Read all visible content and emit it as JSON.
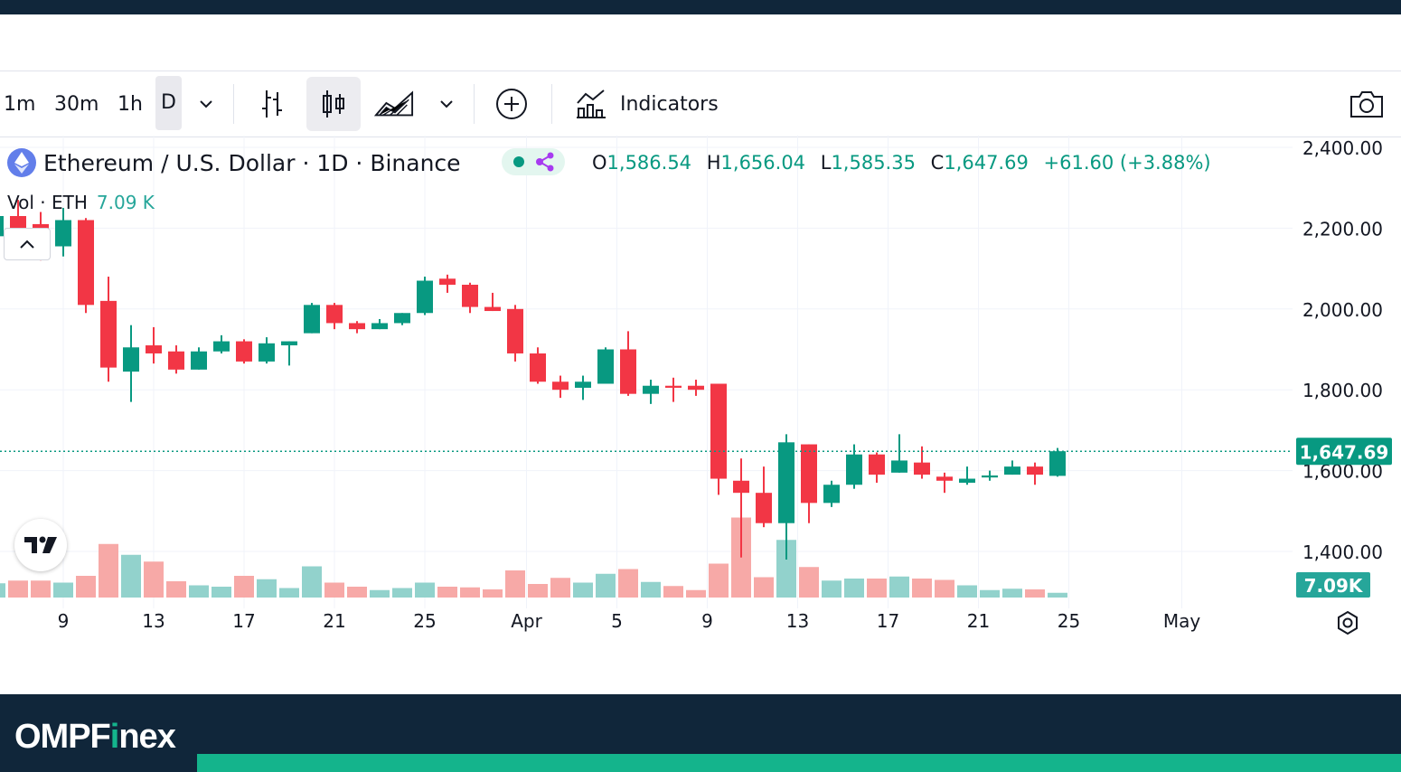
{
  "toolbar": {
    "timeframes": [
      "1m",
      "30m",
      "1h",
      "D"
    ],
    "active_timeframe": "D",
    "indicators_label": "Indicators"
  },
  "legend": {
    "symbol": "Ethereum / U.S. Dollar · 1D · Binance",
    "open_key": "O",
    "open": "1,586.54",
    "high_key": "H",
    "high": "1,656.04",
    "low_key": "L",
    "low": "1,585.35",
    "close_key": "C",
    "close": "1,647.69",
    "change": "+61.60 (+3.88%)",
    "vol_label": "Vol · ETH",
    "vol_value": "7.09 K"
  },
  "brand": {
    "name_part1": "OMPF",
    "name_i": "i",
    "name_part2": "nex"
  },
  "colors": {
    "up": "#089981",
    "down": "#f23645",
    "vol_up": "#92d2cc",
    "vol_down": "#f7a9a7",
    "brand_bg": "#10263a",
    "brand_accent": "#14b48c"
  },
  "icons": [
    "bar-chart-icon",
    "candles-icon",
    "area-chart-icon",
    "chevron-down-icon",
    "plus-circle-icon",
    "indicators-icon",
    "camera-icon",
    "eth-logo-icon",
    "tradingview-logo-icon",
    "settings-icon"
  ],
  "chart_data": {
    "type": "candlestick",
    "price_axis_labels": [
      "2,400.00",
      "2,200.00",
      "2,000.00",
      "1,800.00",
      "1,600.00",
      "1,400.00"
    ],
    "price_axis_values": [
      2400,
      2200,
      2000,
      1800,
      1600,
      1400
    ],
    "x_tick_labels": [
      "9",
      "13",
      "17",
      "21",
      "25",
      "Apr",
      "5",
      "9",
      "13",
      "17",
      "21",
      "25",
      "May"
    ],
    "x_tick_days": [
      2,
      6,
      10,
      14,
      18,
      22.5,
      26.5,
      30.5,
      34.5,
      38.5,
      42.5,
      46.5,
      51.5
    ],
    "last_price_label": "1,647.69",
    "last_price": 1647.69,
    "volume_label": "7.09K",
    "ylim": [
      1245,
      2430
    ],
    "day_range": [
      -1.8,
      52.8
    ],
    "candles": [
      {
        "d": -1,
        "o": 2180,
        "h": 2235,
        "l": 2160,
        "c": 2230
      },
      {
        "d": 0,
        "o": 2230,
        "h": 2270,
        "l": 2170,
        "c": 2200
      },
      {
        "d": 1,
        "o": 2210,
        "h": 2240,
        "l": 2120,
        "c": 2190
      },
      {
        "d": 2,
        "o": 2155,
        "h": 2250,
        "l": 2130,
        "c": 2220
      },
      {
        "d": 3,
        "o": 2220,
        "h": 2225,
        "l": 1990,
        "c": 2010
      },
      {
        "d": 4,
        "o": 2020,
        "h": 2080,
        "l": 1820,
        "c": 1855
      },
      {
        "d": 5,
        "o": 1845,
        "h": 1960,
        "l": 1770,
        "c": 1905
      },
      {
        "d": 6,
        "o": 1910,
        "h": 1955,
        "l": 1865,
        "c": 1890
      },
      {
        "d": 7,
        "o": 1895,
        "h": 1910,
        "l": 1840,
        "c": 1850
      },
      {
        "d": 8,
        "o": 1850,
        "h": 1905,
        "l": 1850,
        "c": 1895
      },
      {
        "d": 9,
        "o": 1895,
        "h": 1935,
        "l": 1890,
        "c": 1920
      },
      {
        "d": 10,
        "o": 1920,
        "h": 1925,
        "l": 1865,
        "c": 1870
      },
      {
        "d": 11,
        "o": 1870,
        "h": 1930,
        "l": 1865,
        "c": 1915
      },
      {
        "d": 12,
        "o": 1910,
        "h": 1920,
        "l": 1860,
        "c": 1920
      },
      {
        "d": 13,
        "o": 1940,
        "h": 2015,
        "l": 1940,
        "c": 2010
      },
      {
        "d": 14,
        "o": 2010,
        "h": 2015,
        "l": 1950,
        "c": 1965
      },
      {
        "d": 15,
        "o": 1965,
        "h": 1970,
        "l": 1940,
        "c": 1950
      },
      {
        "d": 16,
        "o": 1950,
        "h": 1975,
        "l": 1950,
        "c": 1965
      },
      {
        "d": 17,
        "o": 1965,
        "h": 1990,
        "l": 1960,
        "c": 1990
      },
      {
        "d": 18,
        "o": 1990,
        "h": 2080,
        "l": 1985,
        "c": 2070
      },
      {
        "d": 19,
        "o": 2075,
        "h": 2085,
        "l": 2040,
        "c": 2060
      },
      {
        "d": 20,
        "o": 2060,
        "h": 2065,
        "l": 1990,
        "c": 2005
      },
      {
        "d": 21,
        "o": 2005,
        "h": 2040,
        "l": 1995,
        "c": 1995
      },
      {
        "d": 22,
        "o": 2000,
        "h": 2010,
        "l": 1870,
        "c": 1890
      },
      {
        "d": 23,
        "o": 1890,
        "h": 1905,
        "l": 1815,
        "c": 1820
      },
      {
        "d": 24,
        "o": 1820,
        "h": 1835,
        "l": 1780,
        "c": 1800
      },
      {
        "d": 25,
        "o": 1805,
        "h": 1835,
        "l": 1775,
        "c": 1820
      },
      {
        "d": 26,
        "o": 1815,
        "h": 1905,
        "l": 1815,
        "c": 1900
      },
      {
        "d": 27,
        "o": 1900,
        "h": 1945,
        "l": 1785,
        "c": 1790
      },
      {
        "d": 28,
        "o": 1790,
        "h": 1825,
        "l": 1765,
        "c": 1810
      },
      {
        "d": 29,
        "o": 1810,
        "h": 1830,
        "l": 1770,
        "c": 1805
      },
      {
        "d": 30,
        "o": 1810,
        "h": 1825,
        "l": 1785,
        "c": 1800
      },
      {
        "d": 31,
        "o": 1815,
        "h": 1815,
        "l": 1540,
        "c": 1580
      },
      {
        "d": 32,
        "o": 1575,
        "h": 1630,
        "l": 1385,
        "c": 1545
      },
      {
        "d": 33,
        "o": 1545,
        "h": 1610,
        "l": 1460,
        "c": 1470
      },
      {
        "d": 34,
        "o": 1470,
        "h": 1690,
        "l": 1380,
        "c": 1670
      },
      {
        "d": 35,
        "o": 1665,
        "h": 1665,
        "l": 1470,
        "c": 1520
      },
      {
        "d": 36,
        "o": 1520,
        "h": 1575,
        "l": 1510,
        "c": 1565
      },
      {
        "d": 37,
        "o": 1565,
        "h": 1665,
        "l": 1555,
        "c": 1640
      },
      {
        "d": 38,
        "o": 1640,
        "h": 1645,
        "l": 1570,
        "c": 1590
      },
      {
        "d": 39,
        "o": 1595,
        "h": 1690,
        "l": 1595,
        "c": 1625
      },
      {
        "d": 40,
        "o": 1620,
        "h": 1660,
        "l": 1580,
        "c": 1590
      },
      {
        "d": 41,
        "o": 1585,
        "h": 1595,
        "l": 1545,
        "c": 1575
      },
      {
        "d": 42,
        "o": 1570,
        "h": 1610,
        "l": 1565,
        "c": 1580
      },
      {
        "d": 43,
        "o": 1583,
        "h": 1600,
        "l": 1575,
        "c": 1588
      },
      {
        "d": 44,
        "o": 1590,
        "h": 1625,
        "l": 1590,
        "c": 1610
      },
      {
        "d": 45,
        "o": 1610,
        "h": 1620,
        "l": 1565,
        "c": 1590
      },
      {
        "d": 46,
        "o": 1587,
        "h": 1656,
        "l": 1585,
        "c": 1648
      }
    ],
    "volume_scale_max": 100,
    "volumes": [
      {
        "d": -1,
        "v": 21,
        "up": true
      },
      {
        "d": 0,
        "v": 25,
        "up": false
      },
      {
        "d": 1,
        "v": 25,
        "up": false
      },
      {
        "d": 2,
        "v": 22,
        "up": true
      },
      {
        "d": 3,
        "v": 32,
        "up": false
      },
      {
        "d": 4,
        "v": 79,
        "up": false
      },
      {
        "d": 5,
        "v": 63,
        "up": true
      },
      {
        "d": 6,
        "v": 53,
        "up": false
      },
      {
        "d": 7,
        "v": 24,
        "up": false
      },
      {
        "d": 8,
        "v": 18,
        "up": true
      },
      {
        "d": 9,
        "v": 16,
        "up": true
      },
      {
        "d": 10,
        "v": 32,
        "up": false
      },
      {
        "d": 11,
        "v": 27,
        "up": true
      },
      {
        "d": 12,
        "v": 14,
        "up": true
      },
      {
        "d": 13,
        "v": 46,
        "up": true
      },
      {
        "d": 14,
        "v": 22,
        "up": false
      },
      {
        "d": 15,
        "v": 16,
        "up": false
      },
      {
        "d": 16,
        "v": 11,
        "up": true
      },
      {
        "d": 17,
        "v": 14,
        "up": true
      },
      {
        "d": 18,
        "v": 22,
        "up": true
      },
      {
        "d": 19,
        "v": 16,
        "up": false
      },
      {
        "d": 20,
        "v": 15,
        "up": false
      },
      {
        "d": 21,
        "v": 12,
        "up": false
      },
      {
        "d": 22,
        "v": 40,
        "up": false
      },
      {
        "d": 23,
        "v": 20,
        "up": false
      },
      {
        "d": 24,
        "v": 29,
        "up": false
      },
      {
        "d": 25,
        "v": 22,
        "up": true
      },
      {
        "d": 26,
        "v": 35,
        "up": true
      },
      {
        "d": 27,
        "v": 42,
        "up": false
      },
      {
        "d": 28,
        "v": 23,
        "up": true
      },
      {
        "d": 29,
        "v": 17,
        "up": false
      },
      {
        "d": 30,
        "v": 11,
        "up": false
      },
      {
        "d": 31,
        "v": 50,
        "up": false
      },
      {
        "d": 32,
        "v": 118,
        "up": false
      },
      {
        "d": 33,
        "v": 30,
        "up": false
      },
      {
        "d": 34,
        "v": 85,
        "up": true
      },
      {
        "d": 35,
        "v": 45,
        "up": false
      },
      {
        "d": 36,
        "v": 25,
        "up": true
      },
      {
        "d": 37,
        "v": 28,
        "up": true
      },
      {
        "d": 38,
        "v": 28,
        "up": false
      },
      {
        "d": 39,
        "v": 31,
        "up": true
      },
      {
        "d": 40,
        "v": 28,
        "up": false
      },
      {
        "d": 41,
        "v": 26,
        "up": false
      },
      {
        "d": 42,
        "v": 18,
        "up": true
      },
      {
        "d": 43,
        "v": 11,
        "up": true
      },
      {
        "d": 44,
        "v": 13,
        "up": true
      },
      {
        "d": 45,
        "v": 12,
        "up": false
      },
      {
        "d": 46,
        "v": 7,
        "up": true
      }
    ]
  }
}
